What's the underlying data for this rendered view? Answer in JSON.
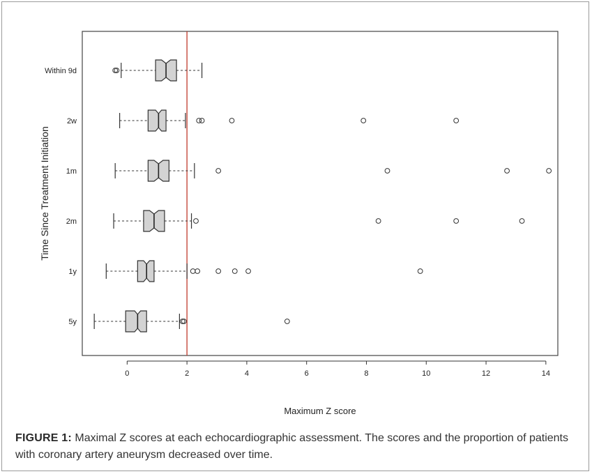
{
  "caption": {
    "label": "FIGURE 1:",
    "text": "Maximal Z scores at each echocardiographic assessment. The scores and the proportion of patients with coronary artery aneurysm decreased over time."
  },
  "chart_data": {
    "type": "boxplot",
    "orientation": "horizontal",
    "notched": true,
    "xlabel": "Maximum Z score",
    "ylabel": "Time Since Treatment Initiation",
    "xlim": [
      -1.5,
      14.4
    ],
    "xticks": [
      0,
      2,
      4,
      6,
      8,
      10,
      12,
      14
    ],
    "grid": false,
    "legend": false,
    "reference_line": {
      "x": 2,
      "color": "#c0392b"
    },
    "colors": {
      "box_fill": "#d3d3d3",
      "box_stroke": "#333333",
      "reference": "#c0392b"
    },
    "categories": [
      "Within 9d",
      "2w",
      "1m",
      "2m",
      "1y",
      "5y"
    ],
    "boxes": [
      {
        "label": "Within 9d",
        "whisker_low": -0.2,
        "q1": 0.95,
        "median": 1.3,
        "q3": 1.65,
        "notch_low": 1.15,
        "notch_high": 1.45,
        "whisker_high": 2.5,
        "outliers": [
          -0.4,
          -0.35
        ]
      },
      {
        "label": "2w",
        "whisker_low": -0.25,
        "q1": 0.7,
        "median": 1.05,
        "q3": 1.3,
        "notch_low": 0.95,
        "notch_high": 1.15,
        "whisker_high": 1.95,
        "outliers": [
          2.4,
          2.5,
          3.5,
          7.9,
          11.0
        ]
      },
      {
        "label": "1m",
        "whisker_low": -0.4,
        "q1": 0.7,
        "median": 1.05,
        "q3": 1.4,
        "notch_low": 0.9,
        "notch_high": 1.2,
        "whisker_high": 2.25,
        "outliers": [
          3.05,
          8.7,
          12.7,
          14.1
        ]
      },
      {
        "label": "2m",
        "whisker_low": -0.45,
        "q1": 0.55,
        "median": 0.9,
        "q3": 1.25,
        "notch_low": 0.75,
        "notch_high": 1.05,
        "whisker_high": 2.15,
        "outliers": [
          2.3,
          8.4,
          11.0,
          13.2
        ]
      },
      {
        "label": "1y",
        "whisker_low": -0.7,
        "q1": 0.35,
        "median": 0.65,
        "q3": 0.9,
        "notch_low": 0.55,
        "notch_high": 0.75,
        "whisker_high": 2.0,
        "outliers": [
          2.2,
          2.35,
          3.05,
          3.6,
          4.05,
          9.8
        ]
      },
      {
        "label": "5y",
        "whisker_low": -1.1,
        "q1": -0.05,
        "median": 0.35,
        "q3": 0.65,
        "notch_low": 0.25,
        "notch_high": 0.45,
        "whisker_high": 1.75,
        "outliers": [
          1.85,
          1.9,
          5.35
        ]
      }
    ]
  }
}
